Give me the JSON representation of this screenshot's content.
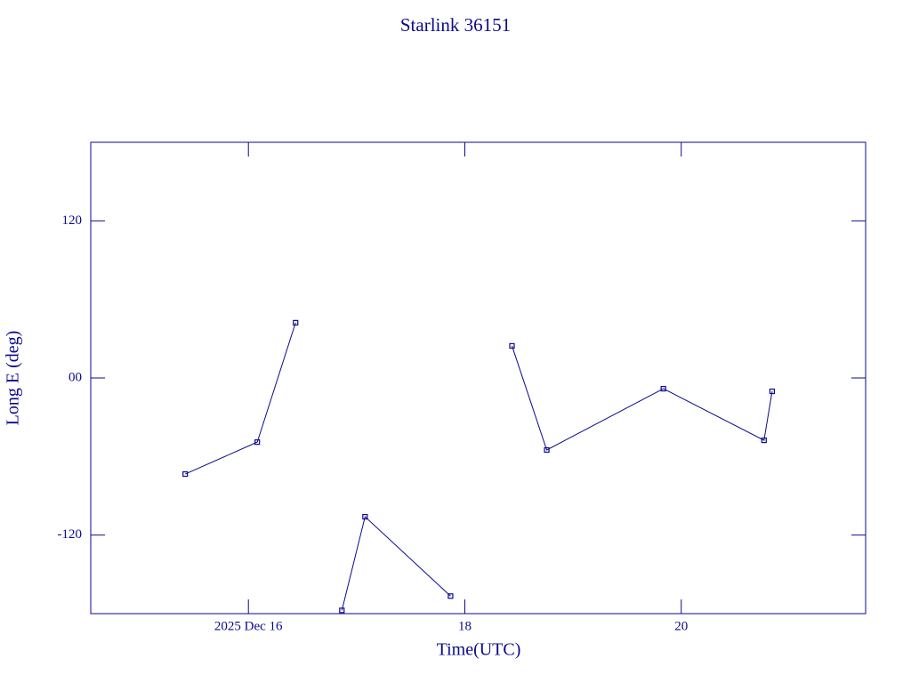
{
  "chart_data": {
    "type": "line",
    "title": "Starlink 36151",
    "x_label": "Time(UTC)",
    "y_label": "Long E (deg)",
    "color": "#0a0a8c",
    "xlim": [
      14.543,
      21.704
    ],
    "ylim": [
      -180,
      180
    ],
    "xticks": [
      {
        "value": 16,
        "label": "2025 Dec 16"
      },
      18,
      20
    ],
    "yticks": [
      -120,
      {
        "value": 0,
        "label": "00"
      },
      120
    ],
    "x": [
      15.416,
      16.082,
      16.436,
      null,
      16.864,
      17.078,
      17.868,
      null,
      18.436,
      18.757,
      19.835,
      20.765,
      20.84
    ],
    "series": [
      {
        "name": "Long E",
        "color": "#0a0a8c",
        "values": [
          -73.4,
          -49.0,
          42.2,
          null,
          -177.5,
          -106.0,
          -166.6,
          null,
          24.5,
          -55.0,
          -8.2,
          -47.6,
          -10.2
        ]
      }
    ]
  }
}
